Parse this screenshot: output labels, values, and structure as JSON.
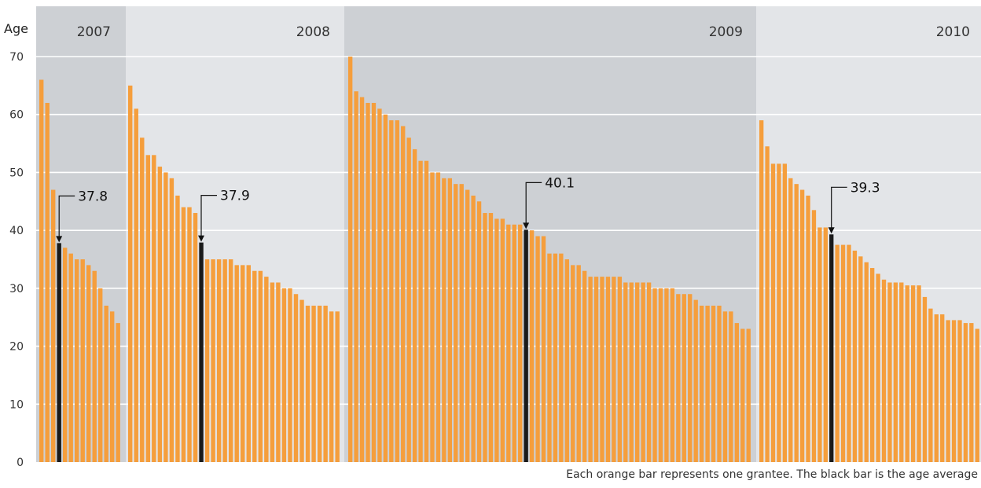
{
  "chart_data": {
    "type": "bar",
    "ylabel": "Age",
    "ylim": [
      0,
      70
    ],
    "yticks": [
      0,
      10,
      20,
      30,
      40,
      50,
      60,
      70
    ],
    "grid": true,
    "colors": {
      "bar": "#F59E3C",
      "average_bar": "#1A1A1A",
      "band_dark": "#CDD0D4",
      "band_light": "#E3E5E8",
      "gridline": "#FFFFFF"
    },
    "groups": [
      {
        "year": "2007",
        "average": 37.8,
        "average_label": "37.8",
        "values": [
          66,
          62,
          47,
          37.8,
          37,
          36,
          35,
          35,
          34,
          33,
          30,
          27,
          26,
          24
        ]
      },
      {
        "year": "2008",
        "average": 37.9,
        "average_label": "37.9",
        "values": [
          65,
          61,
          56,
          53,
          53,
          51,
          50,
          49,
          46,
          44,
          44,
          43,
          37.9,
          35,
          35,
          35,
          35,
          35,
          34,
          34,
          34,
          33,
          33,
          32,
          31,
          31,
          30,
          30,
          29,
          28,
          27,
          27,
          27,
          27,
          26,
          26
        ]
      },
      {
        "year": "2009",
        "average": 40.1,
        "average_label": "40.1",
        "values": [
          70,
          64,
          63,
          62,
          62,
          61,
          60,
          59,
          59,
          58,
          56,
          54,
          52,
          52,
          50,
          50,
          49,
          49,
          48,
          48,
          47,
          46,
          45,
          43,
          43,
          42,
          42,
          41,
          41,
          41,
          40.1,
          40,
          39,
          39,
          36,
          36,
          36,
          35,
          34,
          34,
          33,
          32,
          32,
          32,
          32,
          32,
          32,
          31,
          31,
          31,
          31,
          31,
          30,
          30,
          30,
          30,
          29,
          29,
          29,
          28,
          27,
          27,
          27,
          27,
          26,
          26,
          24,
          23,
          23
        ]
      },
      {
        "year": "2010",
        "average": 39.3,
        "average_label": "39.3",
        "values": [
          59,
          54.5,
          51.5,
          51.5,
          51.5,
          49,
          48,
          47,
          46,
          43.5,
          40.5,
          40.5,
          39.3,
          37.5,
          37.5,
          37.5,
          36.5,
          35.5,
          34.5,
          33.5,
          32.5,
          31.5,
          31,
          31,
          31,
          30.5,
          30.5,
          30.5,
          28.5,
          26.5,
          25.5,
          25.5,
          24.5,
          24.5,
          24.5,
          24,
          24,
          23
        ]
      }
    ],
    "footnote": "Each orange bar represents one grantee. The black bar is the age average"
  }
}
